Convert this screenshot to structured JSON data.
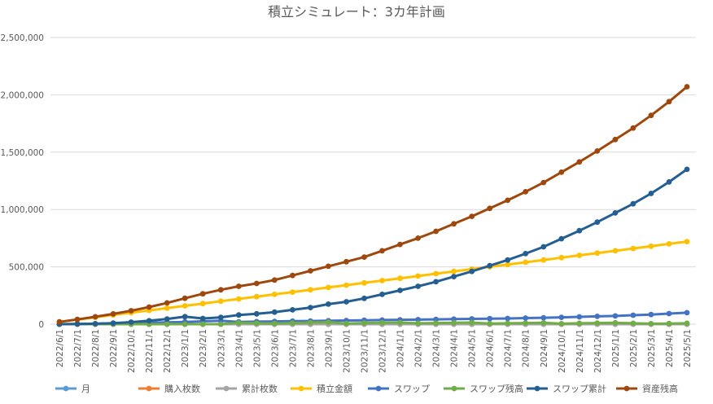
{
  "chart_data": {
    "type": "line",
    "title": "積立シミュレート：3カ年計画",
    "xlabel": "",
    "ylabel": "",
    "ylim": [
      0,
      2500000
    ],
    "yticks": [
      0,
      500000,
      1000000,
      1500000,
      2000000,
      2500000
    ],
    "ytick_labels": [
      "0",
      "500,000",
      "1,000,000",
      "1,500,000",
      "2,000,000",
      "2,500,000"
    ],
    "grid": true,
    "legend_position": "bottom",
    "categories": [
      "2022/6/1",
      "2022/7/1",
      "2022/8/1",
      "2022/9/1",
      "2022/10/1",
      "2022/11/1",
      "2022/12/1",
      "2023/1/1",
      "2023/2/1",
      "2023/3/1",
      "2023/4/1",
      "2023/5/1",
      "2023/6/1",
      "2023/7/1",
      "2023/8/1",
      "2023/9/1",
      "2023/10/1",
      "2023/11/1",
      "2023/12/1",
      "2024/1/1",
      "2024/2/1",
      "2024/3/1",
      "2024/4/1",
      "2024/5/1",
      "2024/6/1",
      "2024/7/1",
      "2024/8/1",
      "2024/9/1",
      "2024/10/1",
      "2024/11/1",
      "2024/12/1",
      "2025/1/1",
      "2025/2/1",
      "2025/3/1",
      "2025/4/1",
      "2025/5/1"
    ],
    "series": [
      {
        "name": "月",
        "color": "#5b9bd5",
        "values": [
          1,
          2,
          3,
          4,
          5,
          6,
          7,
          8,
          9,
          10,
          11,
          12,
          13,
          14,
          15,
          16,
          17,
          18,
          19,
          20,
          21,
          22,
          23,
          24,
          25,
          26,
          27,
          28,
          29,
          30,
          31,
          32,
          33,
          34,
          35,
          36
        ]
      },
      {
        "name": "購入枚数",
        "color": "#ed7d31",
        "values": [
          0,
          0,
          0,
          0,
          0,
          0,
          0,
          0,
          0,
          0,
          0,
          0,
          0,
          0,
          0,
          0,
          0,
          0,
          0,
          0,
          0,
          0,
          0,
          0,
          0,
          0,
          0,
          0,
          0,
          0,
          0,
          0,
          0,
          0,
          0,
          0
        ]
      },
      {
        "name": "累計枚数",
        "color": "#a5a5a5",
        "values": [
          0,
          0,
          0,
          0,
          0,
          0,
          0,
          0,
          0,
          0,
          0,
          0,
          0,
          0,
          0,
          0,
          0,
          0,
          0,
          0,
          0,
          0,
          0,
          0,
          0,
          0,
          0,
          0,
          0,
          0,
          0,
          0,
          0,
          0,
          0,
          0
        ]
      },
      {
        "name": "積立金額",
        "color": "#ffc000",
        "values": [
          20000,
          40000,
          60000,
          80000,
          100000,
          120000,
          140000,
          160000,
          180000,
          200000,
          220000,
          240000,
          260000,
          280000,
          300000,
          320000,
          340000,
          360000,
          380000,
          400000,
          420000,
          440000,
          460000,
          480000,
          500000,
          520000,
          540000,
          560000,
          580000,
          600000,
          620000,
          640000,
          660000,
          680000,
          700000,
          720000
        ]
      },
      {
        "name": "スワップ",
        "color": "#4472c4",
        "values": [
          0,
          1500,
          3000,
          5000,
          8000,
          12000,
          16000,
          20000,
          25000,
          30000,
          20000,
          22000,
          24000,
          26000,
          28000,
          30000,
          32000,
          34000,
          36000,
          38000,
          40000,
          42000,
          44000,
          46000,
          48000,
          50000,
          53000,
          56000,
          60000,
          64000,
          68000,
          72000,
          78000,
          84000,
          92000,
          100000
        ]
      },
      {
        "name": "スワップ残高",
        "color": "#70ad47",
        "values": [
          0,
          0,
          0,
          0,
          0,
          0,
          0,
          0,
          0,
          0,
          12000,
          8000,
          6000,
          10000,
          14000,
          18000,
          6000,
          10000,
          12000,
          14000,
          8000,
          10000,
          12000,
          14000,
          6000,
          8000,
          10000,
          12000,
          4000,
          8000,
          10000,
          12000,
          8000,
          4000,
          6000,
          8000
        ]
      },
      {
        "name": "スワップ累計",
        "color": "#255e91",
        "values": [
          0,
          1500,
          4500,
          9500,
          17500,
          29500,
          45500,
          65500,
          50000,
          60000,
          80000,
          90000,
          105000,
          125000,
          145000,
          175000,
          195000,
          225000,
          260000,
          295000,
          330000,
          370000,
          415000,
          460000,
          510000,
          560000,
          615000,
          675000,
          745000,
          815000,
          890000,
          970000,
          1050000,
          1140000,
          1240000,
          1350000
        ]
      },
      {
        "name": "資産残高",
        "color": "#9e480e",
        "values": [
          20000,
          41500,
          64500,
          89500,
          117500,
          149500,
          185500,
          225500,
          265000,
          300000,
          330000,
          355000,
          385000,
          425000,
          465000,
          505000,
          545000,
          585000,
          640000,
          695000,
          750000,
          810000,
          875000,
          940000,
          1010000,
          1080000,
          1155000,
          1235000,
          1325000,
          1415000,
          1510000,
          1610000,
          1710000,
          1820000,
          1940000,
          2070000
        ]
      }
    ]
  }
}
